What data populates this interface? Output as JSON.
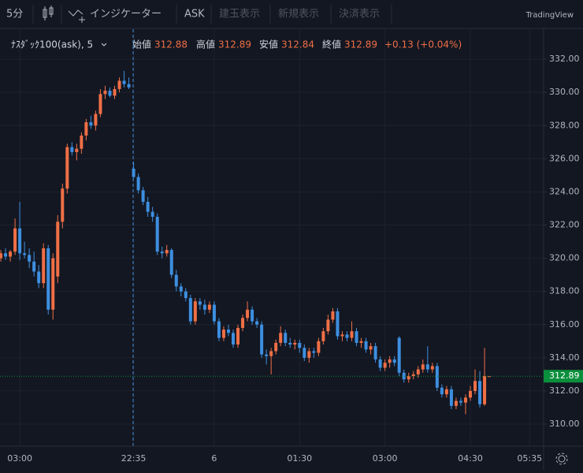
{
  "toolbar": {
    "interval": "5分",
    "indicators": "インジケーター",
    "ask": "ASK",
    "buttons": [
      "建玉表示",
      "新規表示",
      "決済表示"
    ],
    "brand": "TradingView"
  },
  "chart_data": {
    "type": "candlestick",
    "legend": {
      "symbol": "ﾅｽﾀﾞｯｸ100(ask), 5",
      "labels": [
        "始値",
        "高値",
        "安値",
        "終値"
      ],
      "values": [
        312.88,
        312.89,
        312.84,
        312.89
      ],
      "change": "+0.13 (+0.04%)"
    },
    "up_color": "#ef6f46",
    "down_color": "#3d8fe0",
    "grid": true,
    "ylim": [
      308.67,
      333.81
    ],
    "yticks": [
      {
        "value": 310,
        "label": "310.00"
      },
      {
        "value": 312,
        "label": "312.00"
      },
      {
        "value": 314,
        "label": "314.00"
      },
      {
        "value": 316,
        "label": "316.00"
      },
      {
        "value": 318,
        "label": "318.00"
      },
      {
        "value": 320,
        "label": "320.00"
      },
      {
        "value": 322,
        "label": "322.00"
      },
      {
        "value": 324,
        "label": "324.00"
      },
      {
        "value": 326,
        "label": "326.00"
      },
      {
        "value": 328,
        "label": "328.00"
      },
      {
        "value": 330,
        "label": "330.00"
      },
      {
        "value": 332,
        "label": "332.00"
      }
    ],
    "xlim": [
      -0.17,
      114.45
    ],
    "xticks": [
      {
        "value": 4,
        "label": "03:00"
      },
      {
        "value": 28,
        "label": "22:35"
      },
      {
        "value": 45,
        "label": "6"
      },
      {
        "value": 63,
        "label": "01:30"
      },
      {
        "value": 81,
        "label": "03:00"
      },
      {
        "value": 99,
        "label": "04:30"
      },
      {
        "value": 111.5,
        "label": "05:35"
      }
    ],
    "last_price": 312.89,
    "last_price_color": "#0a8f3c",
    "open": [
      320.0,
      320.3,
      320.1,
      320.4,
      321.8,
      320.3,
      320.2,
      319.8,
      319.2,
      318.5,
      320.6,
      316.9,
      318.9,
      322.2,
      324.2,
      326.7,
      326.4,
      326.6,
      327.4,
      328.2,
      328.0,
      328.7,
      329.9,
      330.1,
      329.8,
      330.2,
      330.7,
      330.5,
      325.4,
      324.9,
      324.1,
      323.4,
      322.8,
      322.5,
      320.4,
      320.3,
      320.5,
      319.0,
      318.3,
      318.0,
      317.6,
      316.2,
      317.4,
      317.2,
      316.9,
      317.2,
      316.2,
      315.2,
      315.7,
      315.5,
      314.8,
      315.8,
      316.4,
      316.9,
      316.2,
      316.0,
      314.2,
      314.1,
      314.4,
      314.9,
      315.5,
      314.9,
      314.8,
      314.9,
      314.6,
      314.0,
      314.4,
      314.3,
      315.0,
      315.6,
      316.3,
      316.8,
      315.3,
      315.4,
      315.2,
      315.6,
      314.9,
      315.0,
      314.5,
      314.7,
      313.9,
      313.4,
      313.7,
      313.9,
      315.2,
      313.1,
      312.7,
      312.9,
      313.0,
      313.3,
      313.6,
      313.3,
      313.5,
      312.2,
      311.8,
      312.1,
      311.1,
      311.4,
      311.3,
      311.6,
      312.0,
      312.6,
      311.2,
      312.88
    ],
    "high": [
      320.5,
      320.6,
      320.5,
      322.4,
      323.4,
      321.0,
      320.6,
      320.4,
      319.6,
      320.9,
      320.8,
      320.3,
      322.6,
      324.5,
      326.9,
      327.0,
      326.9,
      327.6,
      328.4,
      328.6,
      328.9,
      330.2,
      330.4,
      330.3,
      330.4,
      330.9,
      331.3,
      330.9,
      325.8,
      325.1,
      324.3,
      323.7,
      323.1,
      322.7,
      320.7,
      320.8,
      320.6,
      319.3,
      318.5,
      318.2,
      317.8,
      317.6,
      317.6,
      317.5,
      317.4,
      317.4,
      316.4,
      315.9,
      316.0,
      315.7,
      316.0,
      316.6,
      317.4,
      317.1,
      316.4,
      316.2,
      314.5,
      314.6,
      315.1,
      315.9,
      315.7,
      315.2,
      315.1,
      315.1,
      314.8,
      314.6,
      314.6,
      315.2,
      315.8,
      316.6,
      317.0,
      317.0,
      315.6,
      315.6,
      316.2,
      315.8,
      315.2,
      315.2,
      314.9,
      314.9,
      314.1,
      313.9,
      314.1,
      314.1,
      315.3,
      313.3,
      313.1,
      313.2,
      313.5,
      313.9,
      314.7,
      313.7,
      313.7,
      312.4,
      312.3,
      312.3,
      311.6,
      311.6,
      311.8,
      312.3,
      313.3,
      313.2,
      314.6,
      312.89
    ],
    "low": [
      319.8,
      319.9,
      319.8,
      320.2,
      319.9,
      320.0,
      319.4,
      318.9,
      318.2,
      318.2,
      316.6,
      316.3,
      318.5,
      321.8,
      323.9,
      326.2,
      325.9,
      326.3,
      327.1,
      327.8,
      327.7,
      328.5,
      329.6,
      329.7,
      329.6,
      330.0,
      330.3,
      330.2,
      324.8,
      323.9,
      323.2,
      322.5,
      322.2,
      320.2,
      320.0,
      320.1,
      318.8,
      318.0,
      317.7,
      317.4,
      316.0,
      316.0,
      316.9,
      316.6,
      316.7,
      316.0,
      315.0,
      315.0,
      315.3,
      314.6,
      314.6,
      315.6,
      316.2,
      316.0,
      315.8,
      314.0,
      313.6,
      313.0,
      314.2,
      314.7,
      314.7,
      314.6,
      314.5,
      314.3,
      313.8,
      313.7,
      314.0,
      314.1,
      314.8,
      315.4,
      316.1,
      315.1,
      315.0,
      315.0,
      315.0,
      314.7,
      314.6,
      314.3,
      314.2,
      313.7,
      313.2,
      313.2,
      313.4,
      313.5,
      312.9,
      312.5,
      312.5,
      312.7,
      312.8,
      313.1,
      313.1,
      313.1,
      312.0,
      311.6,
      311.6,
      310.9,
      310.9,
      311.1,
      310.6,
      311.4,
      311.8,
      311.0,
      311.1,
      312.84
    ],
    "close": [
      320.3,
      320.1,
      320.4,
      321.8,
      320.3,
      320.2,
      319.8,
      319.2,
      318.5,
      320.6,
      316.9,
      320.0,
      322.2,
      324.2,
      326.7,
      326.4,
      326.6,
      327.4,
      328.2,
      328.0,
      328.7,
      329.9,
      330.1,
      329.8,
      330.2,
      330.7,
      330.5,
      330.3,
      324.9,
      324.1,
      323.4,
      322.8,
      322.5,
      320.4,
      320.3,
      320.5,
      319.0,
      318.3,
      318.0,
      317.6,
      316.2,
      317.4,
      317.2,
      316.9,
      317.2,
      316.2,
      315.2,
      315.7,
      315.5,
      314.8,
      315.8,
      316.4,
      316.9,
      316.2,
      316.0,
      314.2,
      314.1,
      314.4,
      314.9,
      315.5,
      314.9,
      314.8,
      314.9,
      314.6,
      314.0,
      314.4,
      314.3,
      315.0,
      315.6,
      316.3,
      316.8,
      315.3,
      315.4,
      315.2,
      315.6,
      314.9,
      315.0,
      314.5,
      314.7,
      313.9,
      313.4,
      313.7,
      313.9,
      313.7,
      313.1,
      312.7,
      312.9,
      313.0,
      313.3,
      313.6,
      313.3,
      313.5,
      312.2,
      311.8,
      312.1,
      311.1,
      311.4,
      311.3,
      311.6,
      312.0,
      312.6,
      311.2,
      312.9,
      312.89
    ]
  }
}
